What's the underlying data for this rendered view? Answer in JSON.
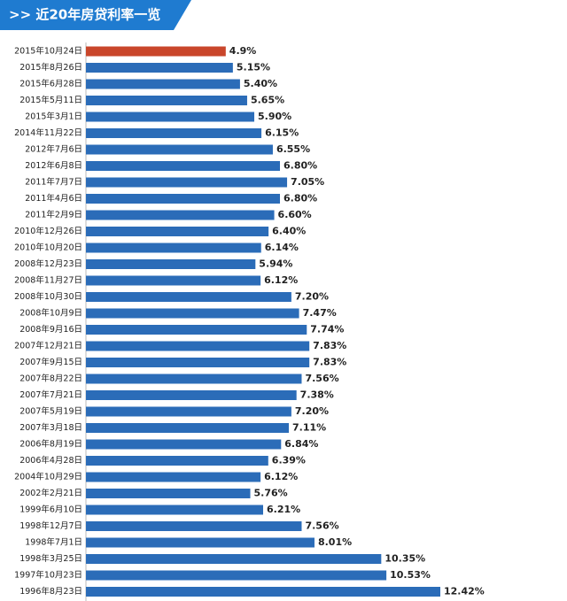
{
  "chart_data": {
    "type": "hbar",
    "title": ">> 近20年房贷利率一览",
    "categories": [
      "2015年10月24日",
      "2015年8月26日",
      "2015年6月28日",
      "2015年5月11日",
      "2015年3月1日",
      "2014年11月22日",
      "2012年7月6日",
      "2012年6月8日",
      "2011年7月7日",
      "2011年4月6日",
      "2011年2月9日",
      "2010年12月26日",
      "2010年10月20日",
      "2008年12月23日",
      "2008年11月27日",
      "2008年10月30日",
      "2008年10月9日",
      "2008年9月16日",
      "2007年12月21日",
      "2007年9月15日",
      "2007年8月22日",
      "2007年7月21日",
      "2007年5月19日",
      "2007年3月18日",
      "2006年8月19日",
      "2006年4月28日",
      "2004年10月29日",
      "2002年2月21日",
      "1999年6月10日",
      "1998年12月7日",
      "1998年7月1日",
      "1998年3月25日",
      "1997年10月23日",
      "1996年8月23日"
    ],
    "values": [
      4.9,
      5.15,
      5.4,
      5.65,
      5.9,
      6.15,
      6.55,
      6.8,
      7.05,
      6.8,
      6.6,
      6.4,
      6.14,
      5.94,
      6.12,
      7.2,
      7.47,
      7.74,
      7.83,
      7.83,
      7.56,
      7.38,
      7.2,
      7.11,
      6.84,
      6.39,
      6.12,
      5.76,
      6.21,
      7.56,
      8.01,
      10.35,
      10.53,
      12.42
    ],
    "value_labels": [
      "4.9%",
      "5.15%",
      "5.40%",
      "5.65%",
      "5.90%",
      "6.15%",
      "6.55%",
      "6.80%",
      "7.05%",
      "6.80%",
      "6.60%",
      "6.40%",
      "6.14%",
      "5.94%",
      "6.12%",
      "7.20%",
      "7.47%",
      "7.74%",
      "7.83%",
      "7.83%",
      "7.56%",
      "7.38%",
      "7.20%",
      "7.11%",
      "6.84%",
      "6.39%",
      "6.12%",
      "5.76%",
      "6.21%",
      "7.56%",
      "8.01%",
      "10.35%",
      "10.53%",
      "12.42%"
    ],
    "colors": [
      "#c9462b",
      "#2b6cb8",
      "#2b6cb8",
      "#2b6cb8",
      "#2b6cb8",
      "#2b6cb8",
      "#2b6cb8",
      "#2b6cb8",
      "#2b6cb8",
      "#2b6cb8",
      "#2b6cb8",
      "#2b6cb8",
      "#2b6cb8",
      "#2b6cb8",
      "#2b6cb8",
      "#2b6cb8",
      "#2b6cb8",
      "#2b6cb8",
      "#2b6cb8",
      "#2b6cb8",
      "#2b6cb8",
      "#2b6cb8",
      "#2b6cb8",
      "#2b6cb8",
      "#2b6cb8",
      "#2b6cb8",
      "#2b6cb8",
      "#2b6cb8",
      "#2b6cb8",
      "#2b6cb8",
      "#2b6cb8",
      "#2b6cb8",
      "#2b6cb8",
      "#2b6cb8"
    ]
  }
}
